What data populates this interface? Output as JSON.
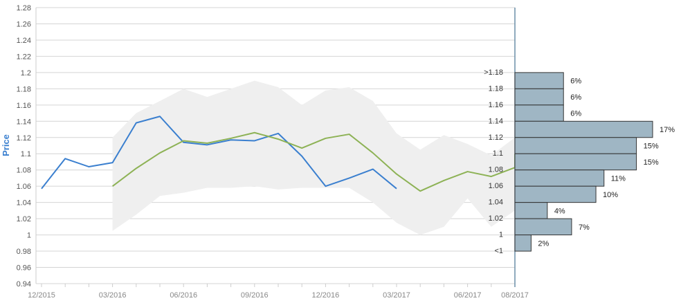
{
  "chart_data": {
    "type": "line",
    "ylabel": "Price",
    "ylim": [
      0.94,
      1.28
    ],
    "yticks": [
      "0.94",
      "0.96",
      "0.98",
      "1",
      "1.02",
      "1.04",
      "1.06",
      "1.08",
      "1.1",
      "1.12",
      "1.14",
      "1.16",
      "1.18",
      "1.2",
      "1.22",
      "1.24",
      "1.26",
      "1.28"
    ],
    "xticks": [
      "12/2015",
      "03/2016",
      "06/2016",
      "09/2016",
      "12/2016",
      "03/2017",
      "06/2017",
      "08/2017"
    ],
    "grid": true,
    "colors": {
      "series_a": "#3a7fcf",
      "series_b": "#8db255",
      "band": "#efefef",
      "hist_fill": "#9fb6c4",
      "hist_stroke": "#333333",
      "ylabel": "#3a7fcf"
    },
    "series": [
      {
        "key": "blue",
        "x": [
          "12/2015",
          "01/2016",
          "02/2016",
          "03/2016",
          "04/2016",
          "05/2016",
          "06/2016",
          "07/2016",
          "08/2016",
          "09/2016",
          "10/2016",
          "11/2016",
          "12/2016",
          "01/2017",
          "02/2017",
          "03/2017"
        ],
        "values": [
          1.057,
          1.094,
          1.084,
          1.089,
          1.138,
          1.146,
          1.114,
          1.111,
          1.117,
          1.116,
          1.125,
          1.097,
          1.06,
          1.07,
          1.081,
          1.057
        ]
      },
      {
        "key": "green",
        "x": [
          "03/2016",
          "04/2016",
          "05/2016",
          "06/2016",
          "07/2016",
          "08/2016",
          "09/2016",
          "10/2016",
          "11/2016",
          "12/2016",
          "01/2017",
          "02/2017",
          "03/2017",
          "04/2017",
          "05/2017",
          "06/2017",
          "07/2017",
          "08/2017"
        ],
        "values": [
          1.06,
          1.082,
          1.101,
          1.116,
          1.113,
          1.119,
          1.126,
          1.118,
          1.107,
          1.119,
          1.124,
          1.101,
          1.075,
          1.054,
          1.067,
          1.078,
          1.072,
          1.083
        ]
      }
    ],
    "band": {
      "x": [
        "03/2016",
        "04/2016",
        "05/2016",
        "06/2016",
        "07/2016",
        "08/2016",
        "09/2016",
        "10/2016",
        "11/2016",
        "12/2016",
        "01/2017",
        "02/2017",
        "03/2017",
        "04/2017",
        "05/2017",
        "06/2017",
        "07/2017",
        "08/2017"
      ],
      "upper": [
        1.12,
        1.15,
        1.165,
        1.18,
        1.17,
        1.18,
        1.19,
        1.182,
        1.16,
        1.178,
        1.182,
        1.165,
        1.125,
        1.105,
        1.123,
        1.112,
        1.098,
        1.12
      ],
      "lower": [
        1.005,
        1.025,
        1.048,
        1.052,
        1.058,
        1.058,
        1.06,
        1.056,
        1.058,
        1.058,
        1.058,
        1.04,
        1.015,
        1.0,
        1.01,
        1.045,
        1.01,
        1.03
      ]
    },
    "histogram": {
      "bins": [
        ">1.18",
        "1.18",
        "1.16",
        "1.14",
        "1.12",
        "1.1",
        "1.08",
        "1.06",
        "1.04",
        "1.02",
        "1",
        "<1"
      ],
      "bin_centers": [
        1.19,
        1.17,
        1.15,
        1.13,
        1.11,
        1.09,
        1.07,
        1.05,
        1.03,
        1.01,
        0.99,
        null
      ],
      "values": [
        6,
        6,
        6,
        17,
        15,
        15,
        11,
        10,
        4,
        7,
        2,
        null
      ],
      "labels": [
        "6%",
        "6%",
        "6%",
        "17%",
        "15%",
        "15%",
        "11%",
        "10%",
        "4%",
        "7%",
        "2%",
        ""
      ]
    }
  }
}
